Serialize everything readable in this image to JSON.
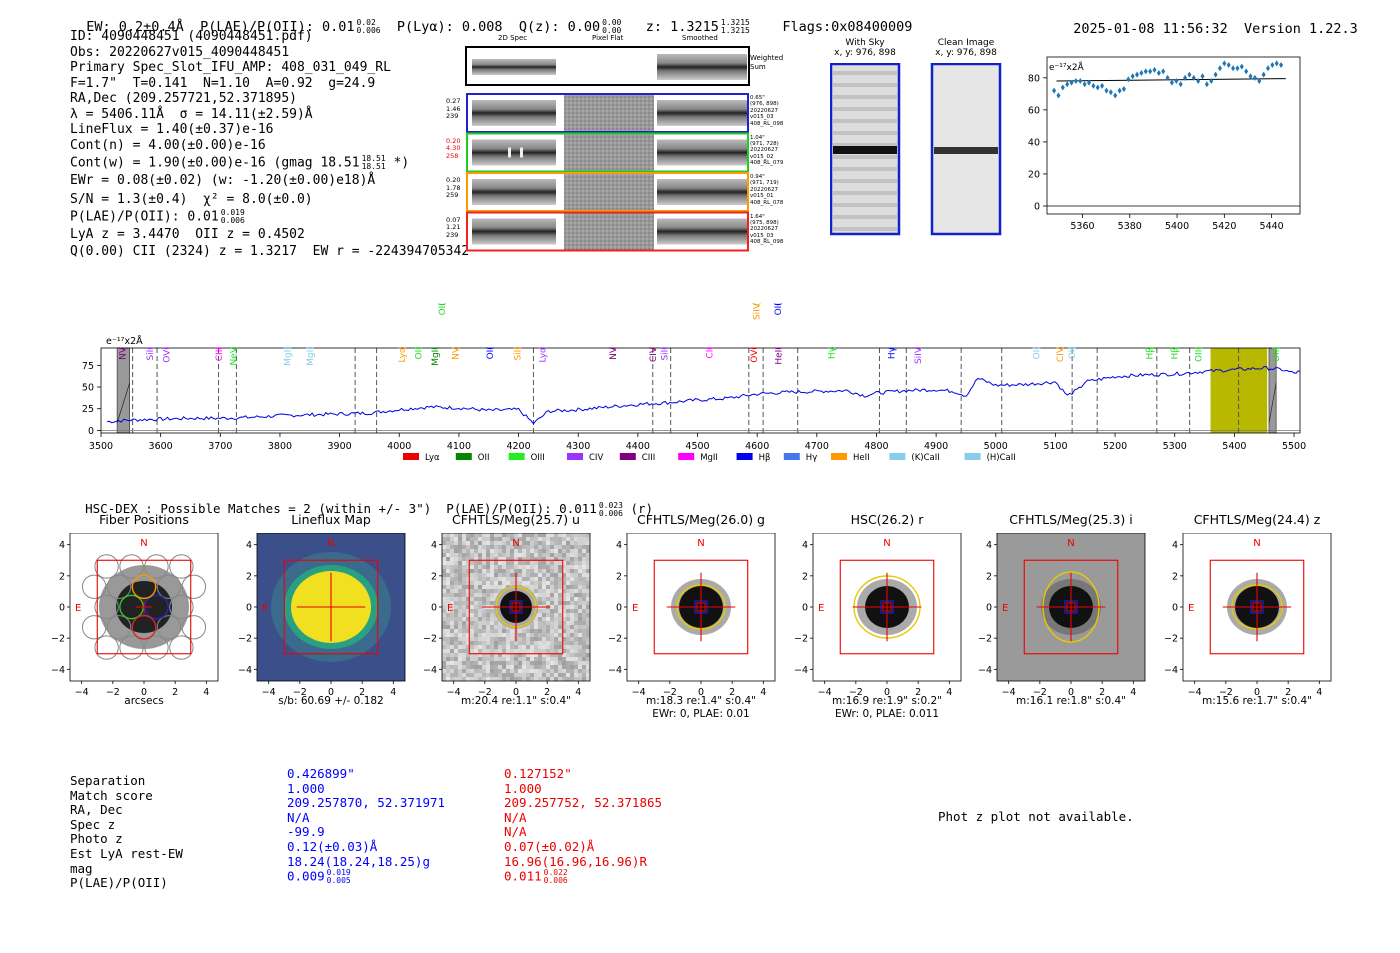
{
  "header": {
    "ew_label": "EW: 0.2±0.4Å",
    "plae_label": "P(LAE)/P(OII):",
    "plae_val": "0.01",
    "plae_hi": "0.02",
    "plae_lo": "0.006",
    "plya_label": "P(Lyα): 0.008",
    "qz_label": "Q(z): 0.00",
    "qz_hi": "0.00",
    "qz_lo": "0.00",
    "z_label": "z: 1.3215",
    "z_hi": "1.3215",
    "z_lo": "1.3215",
    "flags": "Flags:0x08400009",
    "datetime": "2025-01-08 11:56:32",
    "version": "Version 1.22.3"
  },
  "info": {
    "id": "ID: 4090448451 (4090448451.pdf)",
    "obs": "Obs: 20220627v015_4090448451",
    "primary": "Primary Spec_Slot_IFU_AMP: 408_031_049_RL",
    "fibers": "F=1.7\"  T=0.141  N=1.10  A=0.92  g=24.9",
    "radec": "RA,Dec (209.257721,52.371895)",
    "lambda": "λ = 5406.11Å  σ = 14.11(±2.59)Å",
    "lineflux": "LineFlux = 1.40(±0.37)e-16",
    "contn": "Cont(n) = 4.00(±0.00)e-16",
    "contw": "Cont(w) = 1.90(±0.00)e-16 (gmag 18.51",
    "contw_hi": "18.51",
    "contw_lo": "18.51",
    "contw_end": "*)",
    "ewr": "EWr = 0.08(±0.02) (w: -1.20(±0.00)e18)Å",
    "sn": "S/N = 1.3(±0.4)  χ² = 8.0(±0.0)",
    "plae": "P(LAE)/P(OII): 0.01",
    "plae_hi": "0.019",
    "plae_lo": "0.006",
    "lya": "LyA z = 3.4470  OII z = 0.4502",
    "q": "Q(0.00) CII (2324) z = 1.3217  EW r = -224394705342"
  },
  "cutouts": {
    "col_headers": [
      "2D Spec",
      "Pixel Flat",
      "Smoothed"
    ],
    "weighted_sum": "Weighted Sum",
    "rows": [
      {
        "left": [
          "0.27",
          "1.46",
          "239"
        ],
        "right": [
          "0.65\"",
          "(976, 898)",
          "20220627",
          "v015_03",
          "408_RL_098"
        ],
        "color": "#2222cc",
        "leftcolor": "#000"
      },
      {
        "left": [
          "0.20",
          "4.30",
          "258"
        ],
        "right": [
          "1.04\"",
          "(971, 728)",
          "20220627",
          "v015_02",
          "408_RL_079"
        ],
        "color": "#22cc22",
        "leftcolor": "#ee0000"
      },
      {
        "left": [
          "0.20",
          "1.78",
          "259"
        ],
        "right": [
          "0.94\"",
          "(971, 719)",
          "20220627",
          "v015_01",
          "408_RL_078"
        ],
        "color": "#ff9900",
        "leftcolor": "#000"
      },
      {
        "left": [
          "0.07",
          "1.21",
          "239"
        ],
        "right": [
          "1.64\"",
          "(975, 898)",
          "20220627",
          "v015_03",
          "408_RL_098"
        ],
        "color": "#ee2222",
        "leftcolor": "#000"
      }
    ]
  },
  "sky": {
    "with_sky_title": "With Sky",
    "with_sky_xy": "x, y: 976, 898",
    "clean_title": "Clean Image",
    "clean_xy": "x, y: 976, 898"
  },
  "mini_chart": {
    "ylabel": "e⁻¹⁷x2Å",
    "yticks": [
      0,
      20,
      40,
      60,
      80
    ],
    "xticks": [
      5360,
      5380,
      5400,
      5420,
      5440
    ],
    "xlim": [
      5345,
      5452
    ],
    "ylim": [
      -5,
      93
    ],
    "values": [
      72,
      69,
      74,
      76,
      77,
      78,
      78,
      76,
      77,
      75,
      74,
      75,
      72,
      71,
      69,
      72,
      73,
      79,
      81,
      82,
      83,
      84,
      84,
      85,
      83,
      84,
      80,
      77,
      78,
      76,
      80,
      82,
      80,
      78,
      81,
      76,
      78,
      82,
      86,
      89,
      88,
      86,
      86,
      87,
      84,
      81,
      80,
      78,
      82,
      86,
      88,
      89,
      88
    ],
    "fit_y": [
      78,
      79.5
    ]
  },
  "chart_data": {
    "type": "line",
    "title": "",
    "ylabel": "e⁻¹⁷x2Å",
    "xlim": [
      3500,
      5510
    ],
    "ylim": [
      -3,
      95
    ],
    "yticks": [
      0,
      25,
      50,
      75
    ],
    "xticks": [
      3500,
      3600,
      3700,
      3800,
      3900,
      4000,
      4100,
      4200,
      4300,
      4400,
      4500,
      4600,
      4700,
      4800,
      4900,
      5000,
      5100,
      5200,
      5300,
      5400,
      5500
    ],
    "x": [
      3510,
      3550,
      3600,
      3650,
      3700,
      3750,
      3800,
      3850,
      3900,
      3950,
      4000,
      4050,
      4100,
      4150,
      4200,
      4225,
      4250,
      4300,
      4350,
      4400,
      4450,
      4500,
      4550,
      4600,
      4650,
      4700,
      4750,
      4780,
      4800,
      4850,
      4900,
      4930,
      4950,
      4970,
      5000,
      5050,
      5100,
      5120,
      5140,
      5150,
      5200,
      5250,
      5300,
      5350,
      5400,
      5450,
      5480,
      5500,
      5510
    ],
    "y": [
      10,
      12,
      13,
      14,
      14,
      15,
      17,
      18,
      19,
      20,
      24,
      27,
      26,
      23,
      24,
      8,
      22,
      24,
      27,
      30,
      32,
      35,
      37,
      42,
      44,
      45,
      46,
      40,
      43,
      46,
      47,
      45,
      40,
      60,
      52,
      53,
      56,
      40,
      48,
      56,
      62,
      64,
      65,
      68,
      70,
      72,
      70,
      66,
      68
    ],
    "vlines": [
      3553,
      3594,
      3697,
      3727,
      3926,
      3962,
      4225,
      4425,
      4455,
      4586,
      4610,
      4668,
      4805,
      4850,
      4942,
      5010,
      5128,
      5170,
      5270,
      5325,
      5407
    ],
    "masked": [
      [
        3527,
        3548
      ],
      [
        5458,
        5470
      ]
    ],
    "highlight": [
      5360,
      5455
    ],
    "lines_top": [
      {
        "label": "NV",
        "x": 3536,
        "color": "#800080",
        "y": 0
      },
      {
        "label": "SiII",
        "x": 3582,
        "color": "#9933ff",
        "y": 0
      },
      {
        "label": "OVI",
        "x": 3610,
        "color": "#9933ff",
        "y": 0
      },
      {
        "label": "CIII",
        "x": 3698,
        "color": "#ff00ff",
        "y": 0
      },
      {
        "label": "NeV",
        "x": 3722,
        "color": "#22dd22",
        "y": 0
      },
      {
        "label": "MgII",
        "x": 3813,
        "color": "#88ccee",
        "y": 0
      },
      {
        "label": "MgII",
        "x": 3850,
        "color": "#88ccee",
        "y": 0
      },
      {
        "label": "Lyα",
        "x": 4005,
        "color": "#ff9900",
        "y": 0
      },
      {
        "label": "OII",
        "x": 4032,
        "color": "#22dd22",
        "y": 0
      },
      {
        "label": "MgII",
        "x": 4060,
        "color": "#008800",
        "y": 0
      },
      {
        "label": "NV",
        "x": 4094,
        "color": "#ff9900",
        "y": 0
      },
      {
        "label": "OII",
        "x": 4152,
        "color": "#0000ff",
        "y": 0
      },
      {
        "label": "SiII",
        "x": 4198,
        "color": "#ff9900",
        "y": 0
      },
      {
        "label": "Lyα",
        "x": 4240,
        "color": "#9933ff",
        "y": 0
      },
      {
        "label": "NV",
        "x": 4358,
        "color": "#800080",
        "y": 0
      },
      {
        "label": "CIV",
        "x": 4425,
        "color": "#800080",
        "y": 0
      },
      {
        "label": "SiII",
        "x": 4445,
        "color": "#9933ff",
        "y": 0
      },
      {
        "label": "CII",
        "x": 4520,
        "color": "#ff00ff",
        "y": 0
      },
      {
        "label": "OVI",
        "x": 4595,
        "color": "#ee0000",
        "y": 0
      },
      {
        "label": "HeII",
        "x": 4636,
        "color": "#800080",
        "y": 0
      },
      {
        "label": "Hγ",
        "x": 4725,
        "color": "#22dd22",
        "y": 0
      },
      {
        "label": "Hγ",
        "x": 4825,
        "color": "#0000ff",
        "y": 0
      },
      {
        "label": "SiIV",
        "x": 4870,
        "color": "#9933ff",
        "y": 0
      },
      {
        "label": "OII",
        "x": 5068,
        "color": "#88ccee",
        "y": 0
      },
      {
        "label": "CIV",
        "x": 5108,
        "color": "#ff9900",
        "y": 0
      },
      {
        "label": "OII",
        "x": 5128,
        "color": "#88ccee",
        "y": 0
      },
      {
        "label": "Hβ",
        "x": 5258,
        "color": "#22dd22",
        "y": 0
      },
      {
        "label": "Hβ",
        "x": 5300,
        "color": "#22dd22",
        "y": 0
      },
      {
        "label": "OIII",
        "x": 5340,
        "color": "#22dd22",
        "y": 0
      },
      {
        "label": "OIII",
        "x": 5470,
        "color": "#22dd22",
        "y": 0
      },
      {
        "label": "OII",
        "x": 4072,
        "color": "#22dd22",
        "y": 1
      },
      {
        "label": "SiIV",
        "x": 4599,
        "color": "#ff9900",
        "y": 1
      },
      {
        "label": "OII",
        "x": 4635,
        "color": "#0000ff",
        "y": 1
      }
    ],
    "legend": [
      {
        "label": "Lyα",
        "color": "#ee0000"
      },
      {
        "label": "OII",
        "color": "#008800"
      },
      {
        "label": "OIII",
        "color": "#22ee22"
      },
      {
        "label": "CIV",
        "color": "#9933ff"
      },
      {
        "label": "CIII",
        "color": "#800080"
      },
      {
        "label": "MgII",
        "color": "#ff00ff"
      },
      {
        "label": "Hβ",
        "color": "#0000ee"
      },
      {
        "label": "Hγ",
        "color": "#4477ee"
      },
      {
        "label": "HeII",
        "color": "#ff9900"
      },
      {
        "label": "(K)CaII",
        "color": "#88ccee"
      },
      {
        "label": "(H)CaII",
        "color": "#88ccee"
      }
    ]
  },
  "hsc": {
    "title": "HSC-DEX : Possible Matches = 2 (within +/- 3\")  P(LAE)/P(OII): 0.011",
    "hi": "0.023",
    "lo": "0.006",
    "end": "(r)"
  },
  "panels": [
    {
      "title": "Fiber Positions",
      "caption": "arcsecs",
      "caption2": "",
      "kind": "fiber"
    },
    {
      "title": "Lineflux Map",
      "caption": "s/b: 60.69 +/- 0.182",
      "caption2": "",
      "kind": "flux"
    },
    {
      "title": "CFHTLS/Meg(25.7) u",
      "caption": "m:20.4  re:1.1\"  s:0.4\"",
      "caption2": "",
      "kind": "noise"
    },
    {
      "title": "CFHTLS/Meg(26.0) g",
      "caption": "m:18.3  re:1.4\"  s:0.4\"",
      "caption2": "EWr: 0, PLAE: 0.01",
      "kind": "smooth"
    },
    {
      "title": "HSC(26.2) r",
      "caption": "m:16.9  re:1.9\"  s:0.2\"",
      "caption2": "EWr: 0, PLAE: 0.011",
      "kind": "hsc"
    },
    {
      "title": "CFHTLS/Meg(25.3) i",
      "caption": "m:16.1  re:1.8\"  s:0.4\"",
      "caption2": "",
      "kind": "gray"
    },
    {
      "title": "CFHTLS/Meg(24.4) z",
      "caption": "m:15.6  re:1.7\"  s:0.4\"",
      "caption2": "",
      "kind": "smooth"
    }
  ],
  "axis_ticks": [
    "−4",
    "−2",
    "0",
    "2",
    "4"
  ],
  "match_table": {
    "labels": [
      "Separation",
      "Match score",
      "RA, Dec",
      "Spec z",
      "Photo z",
      "Est LyA rest-EW",
      "mag",
      "P(LAE)/P(OII)"
    ],
    "col1": [
      "0.426899\"",
      "1.000",
      "209.257870, 52.371971",
      "N/A",
      "-99.9",
      "0.12(±0.03)Å",
      "18.24(18.24,18.25)g",
      "0.009"
    ],
    "col1_hi": "0.019",
    "col1_lo": "0.005",
    "col2": [
      "0.127152\"",
      "1.000",
      "209.257752, 52.371865",
      "N/A",
      "N/A",
      "0.07(±0.02)Å",
      "16.96(16.96,16.96)R",
      "0.011"
    ],
    "col2_hi": "0.022",
    "col2_lo": "0.006"
  },
  "photz": "Phot z plot not available."
}
